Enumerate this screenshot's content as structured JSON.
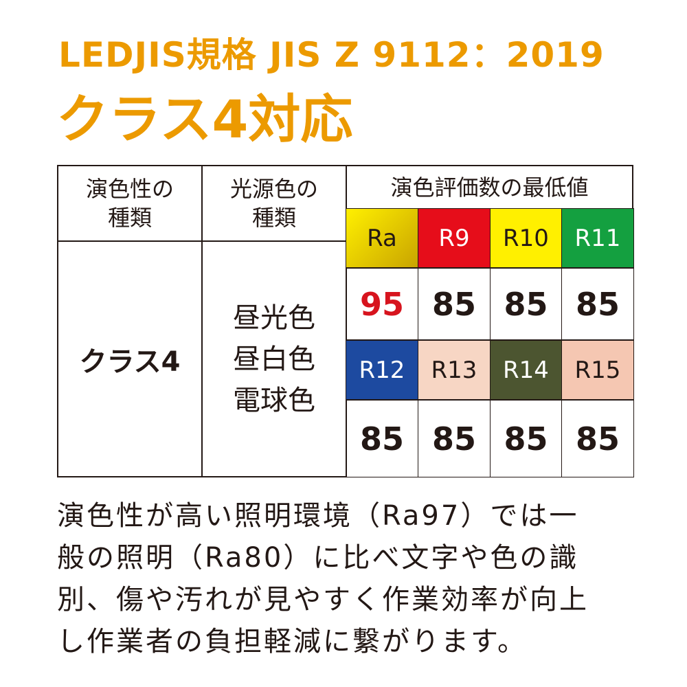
{
  "header": {
    "line1": "LEDJIS規格 JIS Z 9112：2019",
    "line2": "クラス4対応"
  },
  "table": {
    "headers": [
      "演色性の\n種類",
      "光源色の\n種類",
      "演色評価数の最低値"
    ],
    "class": "クラス4",
    "light_colors": [
      "昼光色",
      "昼白色",
      "電球色"
    ],
    "indices": [
      [
        {
          "label": "Ra",
          "value": 95
        },
        {
          "label": "R9",
          "value": 85
        },
        {
          "label": "R10",
          "value": 85
        },
        {
          "label": "R11",
          "value": 85
        }
      ],
      [
        {
          "label": "R12",
          "value": 85
        },
        {
          "label": "R13",
          "value": 85
        },
        {
          "label": "R14",
          "value": 85
        },
        {
          "label": "R15",
          "value": 85
        }
      ]
    ]
  },
  "description": [
    "演色性が高い照明環境（Ra97）では一",
    "般の照明（Ra80）に比べ文字や色の識",
    "別、傷や汚れが見やすく作業効率が向上",
    "し作業者の負担軽減に繋がります。"
  ]
}
